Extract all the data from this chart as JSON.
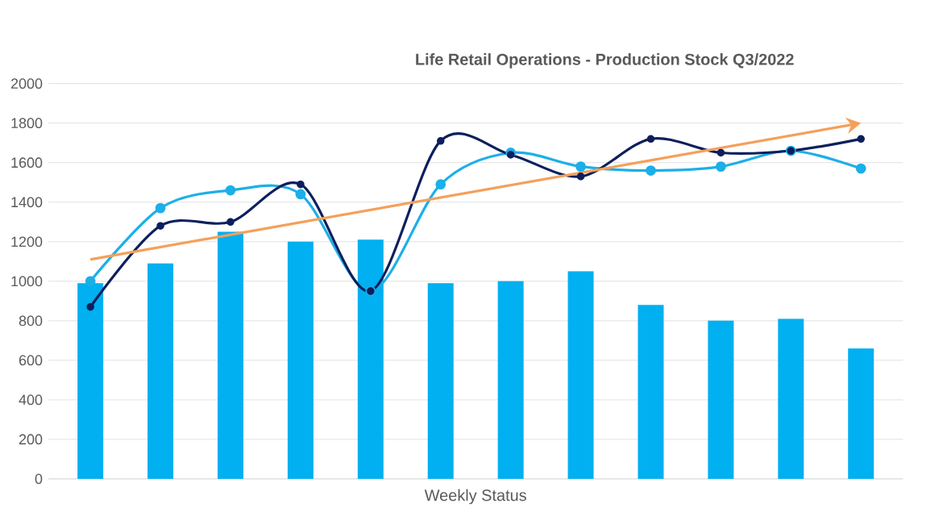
{
  "chart_data": {
    "type": "bar",
    "title": "Life Retail Operations - Production Stock Q3/2022",
    "xlabel": "Weekly Status",
    "categories": [
      null,
      null,
      null,
      null,
      null,
      null,
      null,
      null,
      null,
      null,
      null,
      null
    ],
    "series": [
      {
        "color": "#00b0f0",
        "values": [
          990,
          1090,
          1250,
          1200,
          1210,
          990,
          1000,
          1050,
          880,
          800,
          810,
          660
        ]
      },
      {
        "type": "line",
        "color": "#1cafe8",
        "marker": "circle",
        "values": [
          1000,
          1370,
          1460,
          1440,
          950,
          1490,
          1650,
          1580,
          1560,
          1580,
          1660,
          1570
        ]
      },
      {
        "type": "line",
        "color": "#0d1f5c",
        "marker": "circle",
        "values": [
          870,
          1280,
          1300,
          1490,
          950,
          1710,
          1640,
          1530,
          1720,
          1650,
          1660,
          1720
        ]
      },
      {
        "type": "line",
        "color": "#f4a05a",
        "values": [
          1110,
          null,
          null,
          null,
          null,
          null,
          null,
          null,
          null,
          null,
          null,
          1800
        ]
      }
    ],
    "ylim": [
      0,
      2000
    ],
    "yticks": [
      0,
      200,
      400,
      600,
      800,
      1000,
      1200,
      1400,
      1600,
      1800,
      2000
    ],
    "grid": "y"
  }
}
